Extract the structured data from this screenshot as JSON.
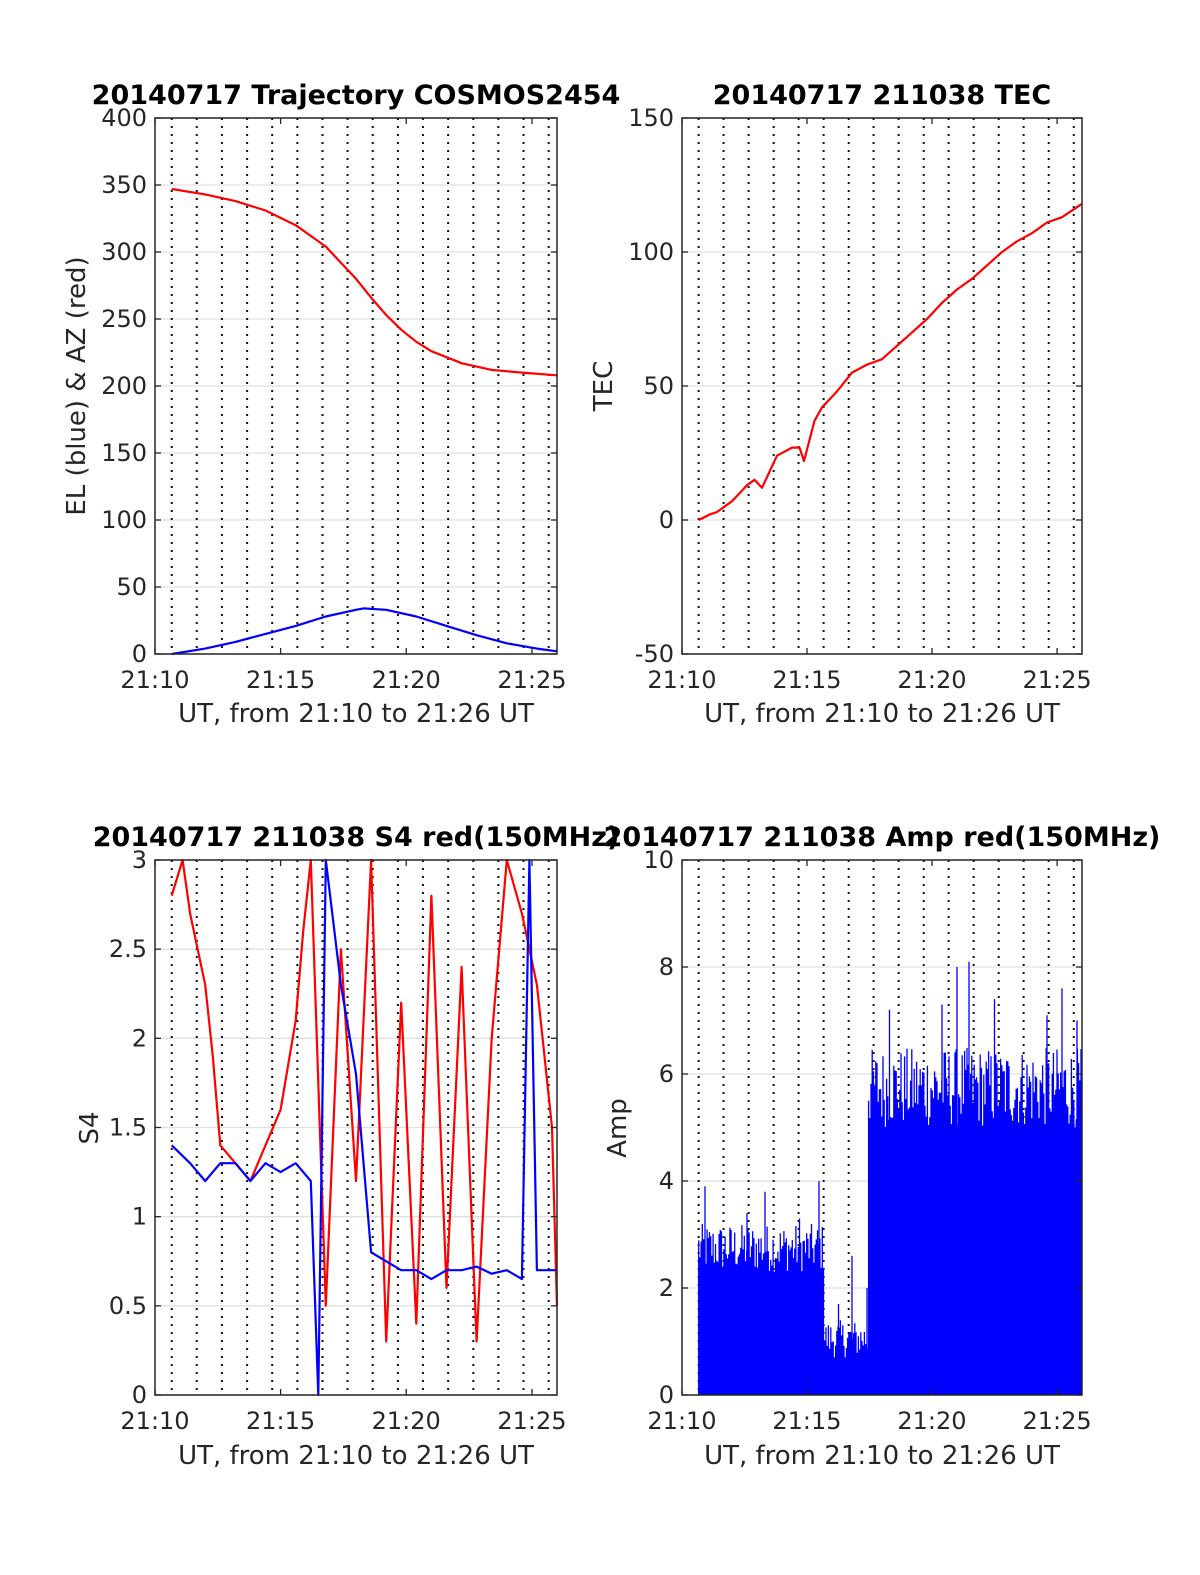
{
  "colors": {
    "az": "#ff0000",
    "el": "#0000ff",
    "tec": "#ff0000",
    "s4_red": "#ff0000",
    "s4_blue": "#0000ff",
    "amp_blue": "#0000ff",
    "amp_red": "#ff0000"
  },
  "chart_data": [
    {
      "type": "line",
      "title": "20140717 Trajectory COSMOS2454",
      "xlabel": "UT, from 21:10 to 21:26 UT",
      "ylabel": "EL (blue) & AZ (red)",
      "xlim": [
        21.1667,
        21.4333
      ],
      "x_ticks": [
        {
          "v": 21.1667,
          "label": "21:10"
        },
        {
          "v": 21.25,
          "label": "21:15"
        },
        {
          "v": 21.3333,
          "label": "21:20"
        },
        {
          "v": 21.4167,
          "label": "21:25"
        }
      ],
      "ylim": [
        0,
        400
      ],
      "y_ticks": [
        {
          "v": 0,
          "label": "0"
        },
        {
          "v": 50,
          "label": "50"
        },
        {
          "v": 100,
          "label": "100"
        },
        {
          "v": 150,
          "label": "150"
        },
        {
          "v": 200,
          "label": "200"
        },
        {
          "v": 250,
          "label": "250"
        },
        {
          "v": 300,
          "label": "300"
        },
        {
          "v": 350,
          "label": "350"
        },
        {
          "v": 400,
          "label": "400"
        }
      ],
      "grid": true,
      "dotted_x_lines": [
        21.1778,
        21.1944,
        21.2111,
        21.2278,
        21.2444,
        21.2611,
        21.2778,
        21.2944,
        21.3111,
        21.3278,
        21.3444,
        21.3611,
        21.3778,
        21.3944,
        21.4111,
        21.4278
      ],
      "series": [
        {
          "color": "#ff0000",
          "x": [
            21.1778,
            21.2,
            21.22,
            21.24,
            21.26,
            21.28,
            21.29,
            21.3,
            21.31,
            21.32,
            21.33,
            21.34,
            21.35,
            21.37,
            21.39,
            21.41,
            21.4333
          ],
          "y": [
            347,
            343,
            338,
            331,
            320,
            304,
            292,
            280,
            266,
            253,
            242,
            233,
            226,
            217,
            212,
            210,
            208
          ]
        },
        {
          "color": "#0000ff",
          "x": [
            21.1778,
            21.2,
            21.22,
            21.24,
            21.26,
            21.28,
            21.3,
            21.305,
            21.32,
            21.34,
            21.36,
            21.38,
            21.4,
            21.42,
            21.4333
          ],
          "y": [
            0,
            4,
            9,
            15,
            21,
            28,
            33,
            34,
            33,
            28,
            21,
            14,
            8,
            4,
            2
          ]
        }
      ]
    },
    {
      "type": "line",
      "title": "20140717 211038 TEC",
      "xlabel": "UT, from 21:10 to 21:26 UT",
      "ylabel": "TEC",
      "xlim": [
        21.1667,
        21.4333
      ],
      "x_ticks": [
        {
          "v": 21.1667,
          "label": "21:10"
        },
        {
          "v": 21.25,
          "label": "21:15"
        },
        {
          "v": 21.3333,
          "label": "21:20"
        },
        {
          "v": 21.4167,
          "label": "21:25"
        }
      ],
      "ylim": [
        -50,
        150
      ],
      "y_ticks": [
        {
          "v": -50,
          "label": "-50"
        },
        {
          "v": 0,
          "label": "0"
        },
        {
          "v": 50,
          "label": "50"
        },
        {
          "v": 100,
          "label": "100"
        },
        {
          "v": 150,
          "label": "150"
        }
      ],
      "grid": true,
      "dotted_x_lines": [
        21.1778,
        21.1944,
        21.2111,
        21.2278,
        21.2444,
        21.2611,
        21.2778,
        21.2944,
        21.3111,
        21.3278,
        21.3444,
        21.3611,
        21.3778,
        21.3944,
        21.4111,
        21.4278
      ],
      "series": [
        {
          "color": "#ff0000",
          "x": [
            21.1778,
            21.185,
            21.19,
            21.2,
            21.21,
            21.215,
            21.22,
            21.23,
            21.24,
            21.245,
            21.248,
            21.255,
            21.26,
            21.27,
            21.28,
            21.29,
            21.3,
            21.31,
            21.32,
            21.33,
            21.34,
            21.35,
            21.36,
            21.37,
            21.38,
            21.39,
            21.4,
            21.41,
            21.42,
            21.4333
          ],
          "y": [
            0,
            2,
            3,
            7,
            13,
            15,
            12,
            24,
            27,
            27,
            22,
            37,
            42,
            48,
            55,
            58,
            60,
            65,
            70,
            75,
            81,
            86,
            90,
            95,
            100,
            104,
            107,
            111,
            113,
            118
          ]
        }
      ]
    },
    {
      "type": "line",
      "title": "20140717 211038 S4 red(150MHz)",
      "xlabel": "UT, from 21:10 to 21:26 UT",
      "ylabel": "S4",
      "xlim": [
        21.1667,
        21.4333
      ],
      "x_ticks": [
        {
          "v": 21.1667,
          "label": "21:10"
        },
        {
          "v": 21.25,
          "label": "21:15"
        },
        {
          "v": 21.3333,
          "label": "21:20"
        },
        {
          "v": 21.4167,
          "label": "21:25"
        }
      ],
      "ylim": [
        0,
        3
      ],
      "y_ticks": [
        {
          "v": 0,
          "label": "0"
        },
        {
          "v": 0.5,
          "label": "0.5"
        },
        {
          "v": 1,
          "label": "1"
        },
        {
          "v": 1.5,
          "label": "1.5"
        },
        {
          "v": 2,
          "label": "2"
        },
        {
          "v": 2.5,
          "label": "2.5"
        },
        {
          "v": 3,
          "label": "3"
        }
      ],
      "grid": true,
      "dotted_x_lines": [
        21.1778,
        21.1944,
        21.2111,
        21.2278,
        21.2444,
        21.2611,
        21.2778,
        21.2944,
        21.3111,
        21.3278,
        21.3444,
        21.3611,
        21.3778,
        21.3944,
        21.4111,
        21.4278
      ],
      "series": [
        {
          "color": "#ff0000",
          "x": [
            21.1778,
            21.185,
            21.19,
            21.2,
            21.205,
            21.21,
            21.22,
            21.23,
            21.24,
            21.25,
            21.26,
            21.265,
            21.27,
            21.28,
            21.29,
            21.3,
            21.31,
            21.32,
            21.33,
            21.34,
            21.35,
            21.36,
            21.37,
            21.38,
            21.39,
            21.4,
            21.41,
            21.42,
            21.425,
            21.43,
            21.4333
          ],
          "y": [
            2.8,
            3,
            2.7,
            2.3,
            1.9,
            1.4,
            1.3,
            1.2,
            1.4,
            1.6,
            2.1,
            2.6,
            3,
            0.5,
            2.5,
            1.2,
            3,
            0.3,
            2.2,
            0.4,
            2.8,
            0.6,
            2.4,
            0.3,
            2.0,
            3,
            2.7,
            2.3,
            1.9,
            1.5,
            0.5
          ]
        },
        {
          "color": "#0000ff",
          "x": [
            21.1778,
            21.19,
            21.2,
            21.21,
            21.22,
            21.23,
            21.24,
            21.25,
            21.26,
            21.27,
            21.275,
            21.28,
            21.29,
            21.3,
            21.31,
            21.32,
            21.33,
            21.34,
            21.35,
            21.36,
            21.37,
            21.38,
            21.39,
            21.4,
            21.41,
            21.415,
            21.42,
            21.43,
            21.4333
          ],
          "y": [
            1.4,
            1.3,
            1.2,
            1.3,
            1.3,
            1.2,
            1.3,
            1.25,
            1.3,
            1.2,
            0,
            3,
            2.3,
            1.8,
            0.8,
            0.75,
            0.7,
            0.7,
            0.65,
            0.7,
            0.7,
            0.72,
            0.68,
            0.7,
            0.65,
            3,
            0.7,
            0.7,
            0.7
          ]
        }
      ]
    },
    {
      "type": "line",
      "title": "20140717 211038 Amp red(150MHz)",
      "xlabel": "UT, from 21:10 to 21:26 UT",
      "ylabel": "Amp",
      "xlim": [
        21.1667,
        21.4333
      ],
      "x_ticks": [
        {
          "v": 21.1667,
          "label": "21:10"
        },
        {
          "v": 21.25,
          "label": "21:15"
        },
        {
          "v": 21.3333,
          "label": "21:20"
        },
        {
          "v": 21.4167,
          "label": "21:25"
        }
      ],
      "ylim": [
        0,
        10
      ],
      "y_ticks": [
        {
          "v": 0,
          "label": "0"
        },
        {
          "v": 2,
          "label": "2"
        },
        {
          "v": 4,
          "label": "4"
        },
        {
          "v": 6,
          "label": "6"
        },
        {
          "v": 8,
          "label": "8"
        },
        {
          "v": 10,
          "label": "10"
        }
      ],
      "grid": true,
      "dotted_x_lines": [
        21.1778,
        21.1944,
        21.2111,
        21.2278,
        21.2444,
        21.2611,
        21.2778,
        21.2944,
        21.3111,
        21.3278,
        21.3444,
        21.3611,
        21.3778,
        21.3944,
        21.4111,
        21.4278
      ],
      "series": [
        {
          "color": "#0000ff",
          "segments": [
            {
              "x": [
                21.1778,
                21.2611
              ],
              "peak_min": 2.3,
              "peak_max": 3.2,
              "spikes": [
                [
                  21.182,
                  3.9
                ],
                [
                  21.21,
                  3.4
                ],
                [
                  21.222,
                  3.8
                ],
                [
                  21.245,
                  3.3
                ],
                [
                  21.258,
                  4.0
                ]
              ]
            },
            {
              "x": [
                21.2611,
                21.2911
              ],
              "peak_min": 0.7,
              "peak_max": 1.4,
              "spikes": [
                [
                  21.271,
                  1.7
                ],
                [
                  21.28,
                  2.6
                ],
                [
                  21.29,
                  2.0
                ]
              ]
            },
            {
              "x": [
                21.2911,
                21.4333
              ],
              "peak_min": 5.0,
              "peak_max": 6.5,
              "spikes": [
                [
                  21.305,
                  7.2
                ],
                [
                  21.34,
                  7.3
                ],
                [
                  21.35,
                  8.0
                ],
                [
                  21.358,
                  8.1
                ],
                [
                  21.375,
                  7.4
                ],
                [
                  21.41,
                  7.1
                ],
                [
                  21.42,
                  7.6
                ],
                [
                  21.43,
                  7.0
                ]
              ]
            }
          ]
        }
      ]
    }
  ]
}
